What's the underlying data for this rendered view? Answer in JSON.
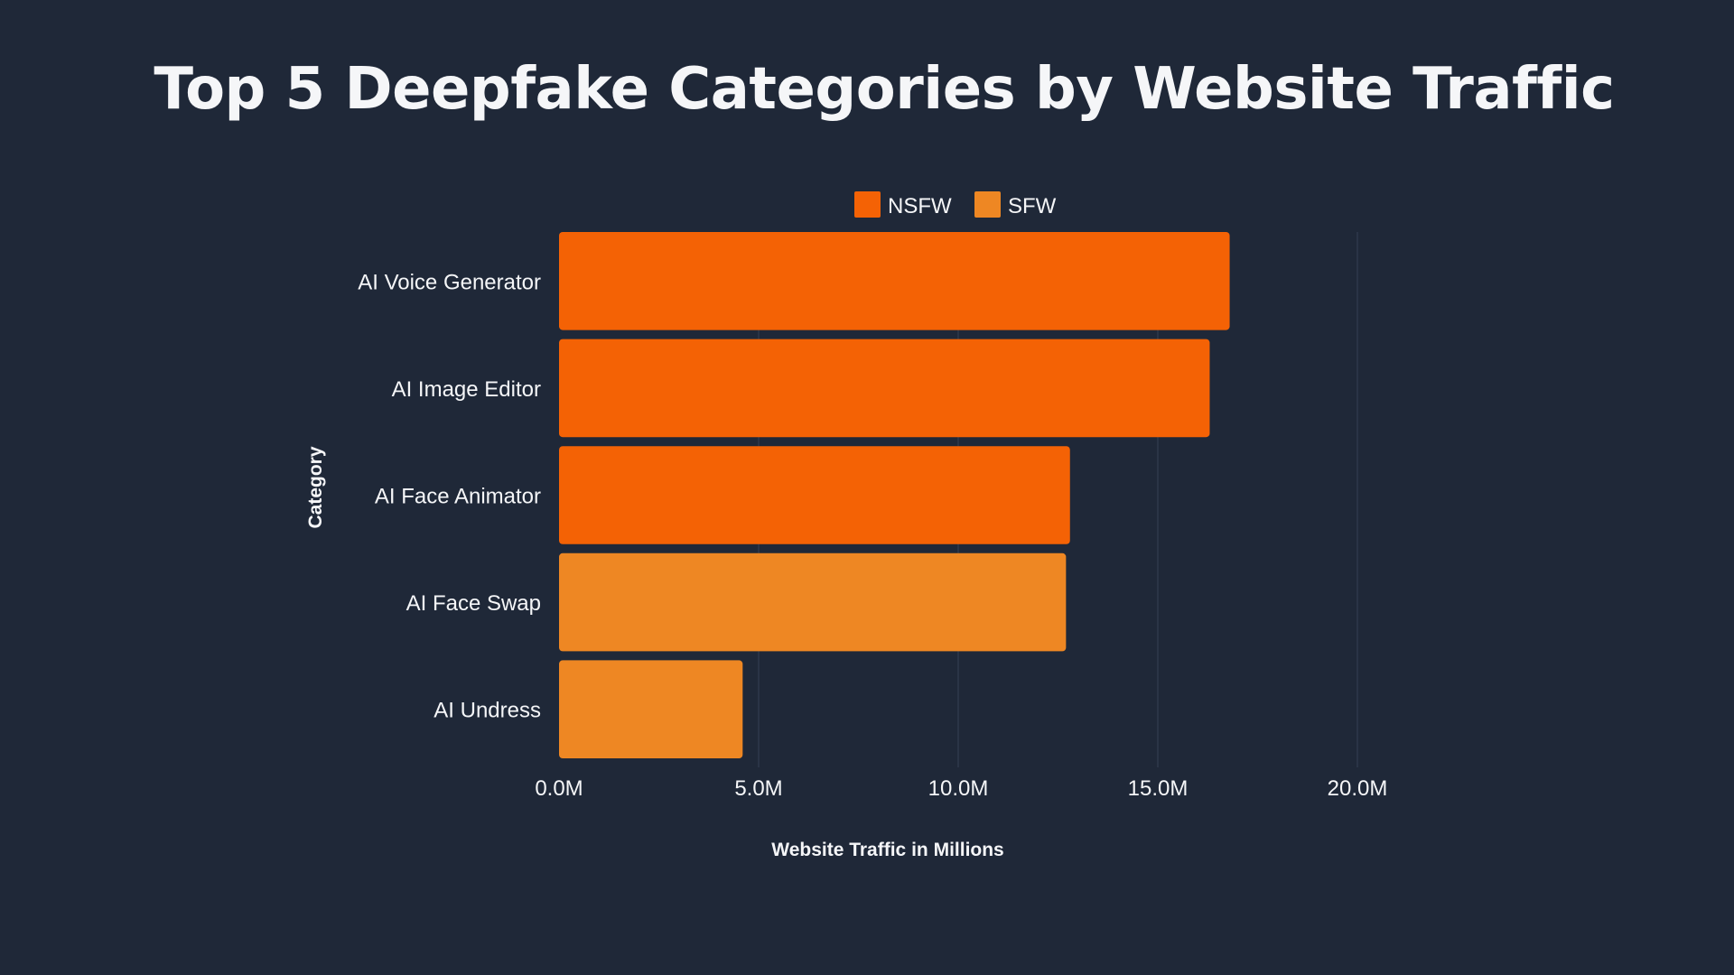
{
  "colors": {
    "background": "#1f2838",
    "grid": "#364154",
    "text": "#f5f6f8",
    "nsfw": "#f46205",
    "sfw": "#ee8723"
  },
  "chart_data": {
    "type": "bar",
    "orientation": "horizontal",
    "title": "Top 5 Deepfake Categories by Website Traffic",
    "xlabel": "Website Traffic in Millions",
    "ylabel": "Category",
    "xlim": [
      0,
      20
    ],
    "xticks": [
      0,
      5,
      10,
      15,
      20
    ],
    "xtick_labels": [
      "0.0M",
      "5.0M",
      "10.0M",
      "15.0M",
      "20.0M"
    ],
    "grid": "vertical",
    "legend_position": "top-center",
    "legend": [
      {
        "name": "NSFW",
        "color": "#f46205"
      },
      {
        "name": "SFW",
        "color": "#ee8723"
      }
    ],
    "categories": [
      "AI Voice Generator",
      "AI Image Editor",
      "AI Face Animator",
      "AI Face Swap",
      "AI Undress"
    ],
    "values": [
      16.8,
      16.3,
      12.8,
      12.7,
      4.6
    ],
    "groups": [
      "NSFW",
      "NSFW",
      "NSFW",
      "SFW",
      "SFW"
    ]
  }
}
